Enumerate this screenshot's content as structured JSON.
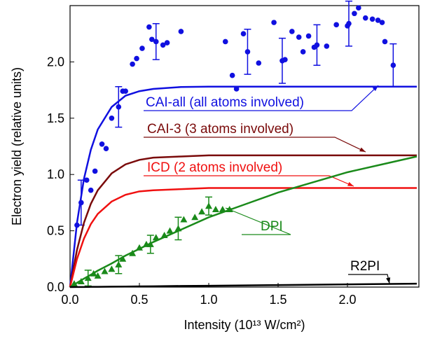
{
  "chart_data": {
    "type": "line",
    "xlabel": "Intensity (10¹³ W/cm²)",
    "ylabel": "Electron yield (relative units)",
    "xlim": [
      0,
      2.5
    ],
    "ylim": [
      0,
      2.5
    ],
    "xticks": [
      {
        "value": 0,
        "label": "0.0"
      },
      {
        "value": 0.5,
        "label": "0.5"
      },
      {
        "value": 1,
        "label": "1.0"
      },
      {
        "value": 1.5,
        "label": "1.5"
      },
      {
        "value": 2,
        "label": "2.0"
      }
    ],
    "yticks": [
      {
        "value": 0,
        "label": "0.0"
      },
      {
        "value": 0.5,
        "label": "0.5"
      },
      {
        "value": 1,
        "label": "1.0"
      },
      {
        "value": 1.5,
        "label": "1.5"
      },
      {
        "value": 2,
        "label": "2.0"
      }
    ],
    "series": [
      {
        "type": "scatter",
        "marker": "circle",
        "color": "#1010e0",
        "x": [
          0.05,
          0.08,
          0.12,
          0.15,
          0.18,
          0.23,
          0.26,
          0.3,
          0.35,
          0.38,
          0.4,
          0.45,
          0.48,
          0.52,
          0.57,
          0.59,
          0.62,
          0.67,
          0.7,
          0.8,
          1.12,
          1.17,
          1.2,
          1.25,
          1.28,
          1.36,
          1.47,
          1.53,
          1.55,
          1.6,
          1.65,
          1.68,
          1.72,
          1.76,
          1.78,
          1.85,
          1.92,
          2.0,
          2.01,
          2.05,
          2.08,
          2.13,
          2.18,
          2.22,
          2.25,
          2.27,
          2.33
        ],
        "values": [
          0.55,
          0.75,
          0.95,
          0.86,
          1.03,
          1.27,
          1.23,
          1.5,
          1.6,
          1.74,
          1.74,
          1.98,
          2.03,
          2.12,
          2.31,
          2.2,
          2.18,
          2.15,
          2.17,
          2.27,
          2.18,
          1.88,
          1.76,
          2.25,
          2.09,
          1.99,
          2.35,
          2.01,
          2.02,
          2.27,
          2.22,
          2.09,
          2.23,
          2.13,
          2.15,
          2.14,
          2.33,
          2.32,
          2.34,
          2.43,
          2.48,
          2.39,
          2.38,
          2.37,
          2.35,
          2.18,
          1.97
        ],
        "errors": [
          null,
          0.2,
          null,
          null,
          null,
          null,
          null,
          null,
          0.18,
          null,
          null,
          null,
          null,
          null,
          null,
          null,
          0.16,
          null,
          null,
          null,
          null,
          null,
          null,
          null,
          0.2,
          null,
          null,
          0.2,
          null,
          null,
          null,
          null,
          null,
          null,
          0.18,
          null,
          null,
          null,
          0.2,
          null,
          null,
          null,
          null,
          null,
          null,
          null,
          0.19
        ]
      },
      {
        "type": "scatter",
        "marker": "triangle",
        "color": "#1a8a1a",
        "x": [
          0.03,
          0.08,
          0.13,
          0.17,
          0.2,
          0.25,
          0.3,
          0.35,
          0.38,
          0.45,
          0.5,
          0.55,
          0.58,
          0.62,
          0.68,
          0.72,
          0.78,
          0.82,
          0.9,
          0.95,
          1.0,
          1.05,
          1.1,
          1.15
        ],
        "values": [
          0.03,
          0.05,
          0.08,
          0.12,
          0.1,
          0.14,
          0.16,
          0.2,
          0.25,
          0.3,
          0.35,
          0.38,
          0.38,
          0.44,
          0.46,
          0.5,
          0.52,
          0.6,
          0.62,
          0.67,
          0.72,
          0.69,
          0.69,
          0.69
        ],
        "errors": [
          null,
          null,
          0.07,
          null,
          null,
          null,
          null,
          0.08,
          null,
          null,
          null,
          null,
          0.08,
          null,
          null,
          null,
          0.1,
          null,
          null,
          null,
          0.08,
          null,
          null,
          null
        ]
      },
      {
        "type": "line",
        "name": "CAI-all (all atoms involved)",
        "color": "#1010e0",
        "x": [
          0,
          0.05,
          0.1,
          0.15,
          0.2,
          0.3,
          0.4,
          0.5,
          0.6,
          0.8,
          1.0,
          1.25,
          1.5,
          1.75,
          2.0,
          2.25,
          2.5
        ],
        "values": [
          0,
          0.57,
          0.96,
          1.22,
          1.4,
          1.6,
          1.7,
          1.74,
          1.76,
          1.777,
          1.78,
          1.78,
          1.78,
          1.78,
          1.78,
          1.78,
          1.78
        ]
      },
      {
        "type": "line",
        "name": "CAI-3 (3 atoms involved)",
        "color": "#7a0a0a",
        "x": [
          0,
          0.05,
          0.1,
          0.15,
          0.2,
          0.3,
          0.4,
          0.5,
          0.6,
          0.8,
          1.0,
          1.25,
          1.5,
          1.75,
          2.0,
          2.25,
          2.5
        ],
        "values": [
          0,
          0.33,
          0.57,
          0.74,
          0.86,
          1.01,
          1.09,
          1.13,
          1.15,
          1.16,
          1.17,
          1.17,
          1.17,
          1.17,
          1.17,
          1.17,
          1.17
        ]
      },
      {
        "type": "line",
        "name": "ICD (2 atoms involved)",
        "color": "#f01010",
        "x": [
          0,
          0.05,
          0.1,
          0.15,
          0.2,
          0.3,
          0.4,
          0.5,
          0.6,
          0.8,
          1.0,
          1.25,
          1.5,
          1.75,
          2.0,
          2.25,
          2.5
        ],
        "values": [
          0,
          0.25,
          0.43,
          0.56,
          0.65,
          0.76,
          0.82,
          0.85,
          0.86,
          0.87,
          0.88,
          0.88,
          0.88,
          0.88,
          0.88,
          0.88,
          0.88
        ]
      },
      {
        "type": "line",
        "name": "DPI",
        "color": "#1a8a1a",
        "x": [
          0,
          0.05,
          0.1,
          0.15,
          0.2,
          0.3,
          0.4,
          0.5,
          0.6,
          0.8,
          1.0,
          1.25,
          1.5,
          1.75,
          2.0,
          2.25,
          2.5
        ],
        "values": [
          0,
          0.038,
          0.075,
          0.11,
          0.146,
          0.21,
          0.28,
          0.34,
          0.4,
          0.51,
          0.62,
          0.73,
          0.84,
          0.93,
          1.02,
          1.09,
          1.16
        ]
      },
      {
        "type": "line",
        "name": "R2PI",
        "color": "#000000",
        "x": [
          0,
          0.05,
          0.1,
          0.15,
          0.2,
          0.3,
          0.4,
          0.5,
          0.6,
          0.8,
          1.0,
          1.25,
          1.5,
          1.75,
          2.0,
          2.25,
          2.5
        ],
        "values": [
          0,
          0.001,
          0.001,
          0.002,
          0.002,
          0.004,
          0.005,
          0.006,
          0.007,
          0.01,
          0.012,
          0.015,
          0.018,
          0.021,
          0.024,
          0.027,
          0.03
        ]
      }
    ]
  }
}
